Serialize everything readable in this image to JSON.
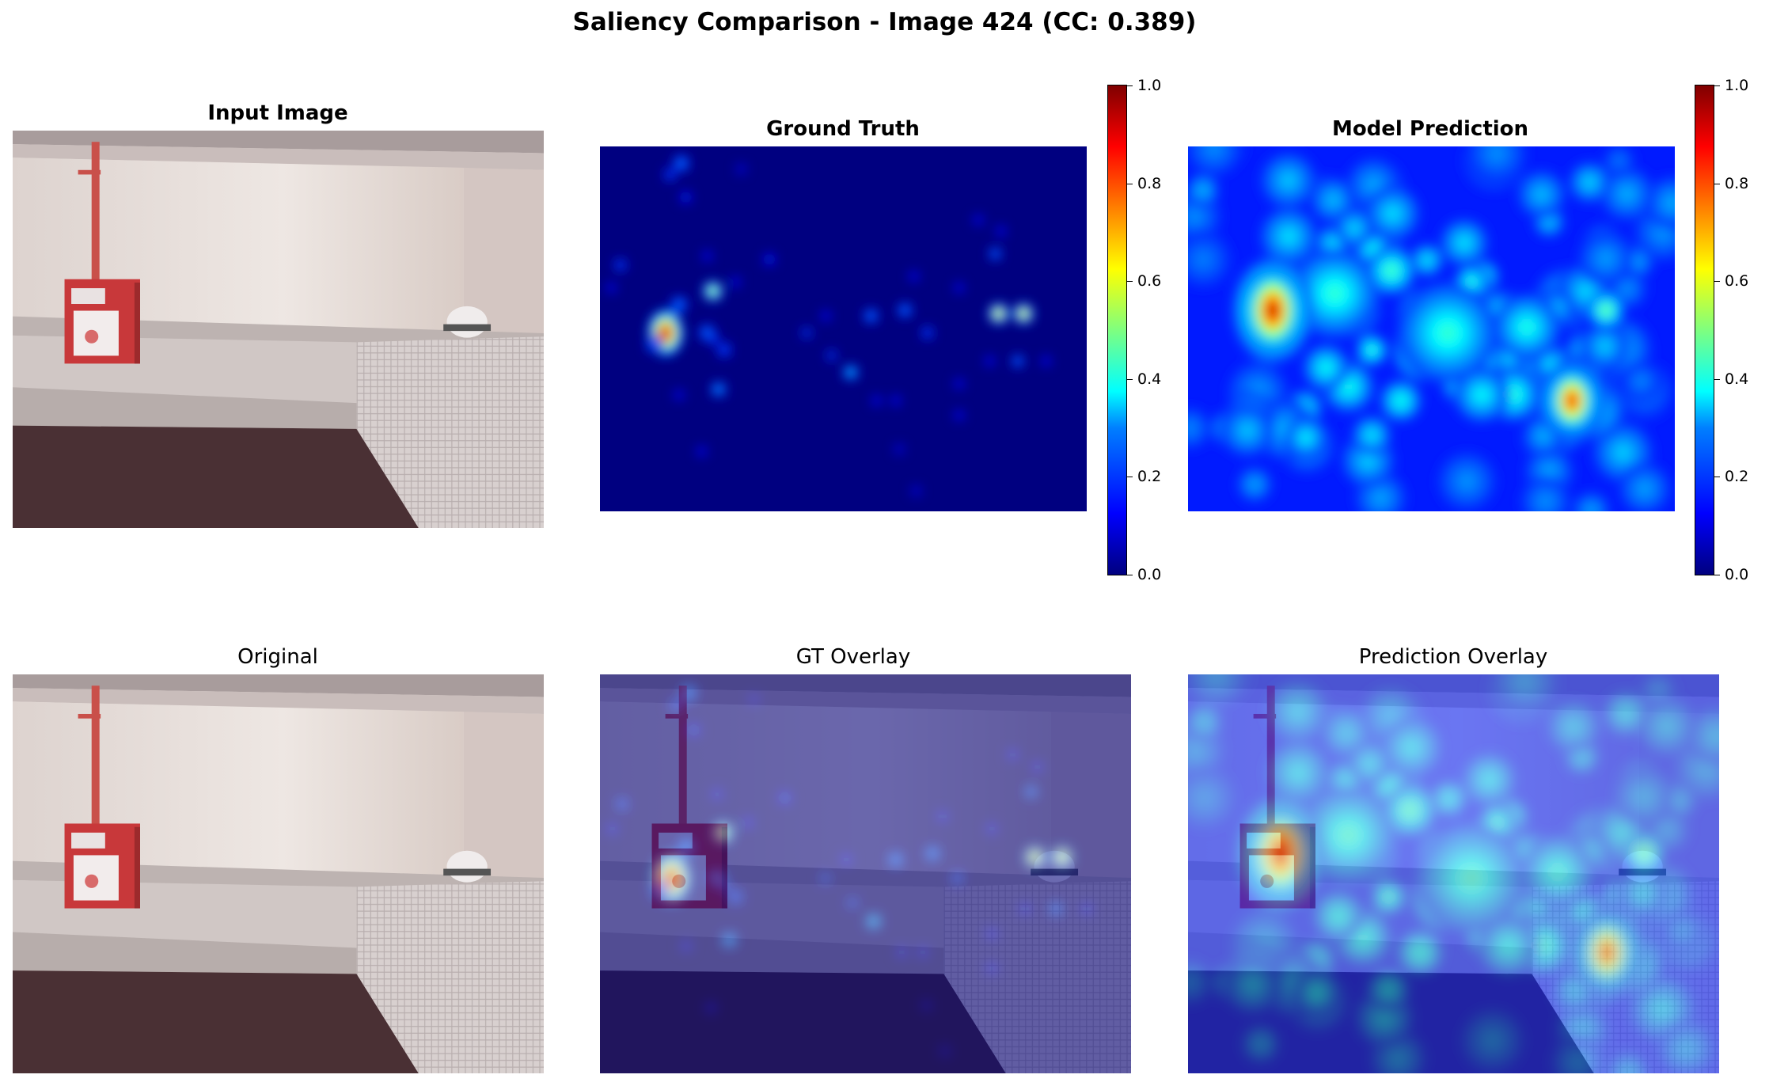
{
  "figure": {
    "title": "Saliency Comparison - Image 424 (CC: 0.389)"
  },
  "chart_data": {
    "type": "heatmap",
    "title": "Saliency Comparison - Image 424 (CC: 0.389)",
    "colormap": "jet",
    "panels": [
      {
        "title": "Input Image",
        "kind": "image"
      },
      {
        "title": "Ground Truth",
        "kind": "heatmap",
        "colorbar": true
      },
      {
        "title": "Model Prediction",
        "kind": "heatmap",
        "colorbar": true
      },
      {
        "title": "Original",
        "kind": "image"
      },
      {
        "title": "GT Overlay",
        "kind": "overlay"
      },
      {
        "title": "Prediction Overlay",
        "kind": "overlay"
      }
    ],
    "colorbar": {
      "range": [
        0.0,
        1.0
      ],
      "ticks": [
        "0.0",
        "0.2",
        "0.4",
        "0.6",
        "0.8",
        "1.0"
      ]
    },
    "axes_visible": false
  }
}
